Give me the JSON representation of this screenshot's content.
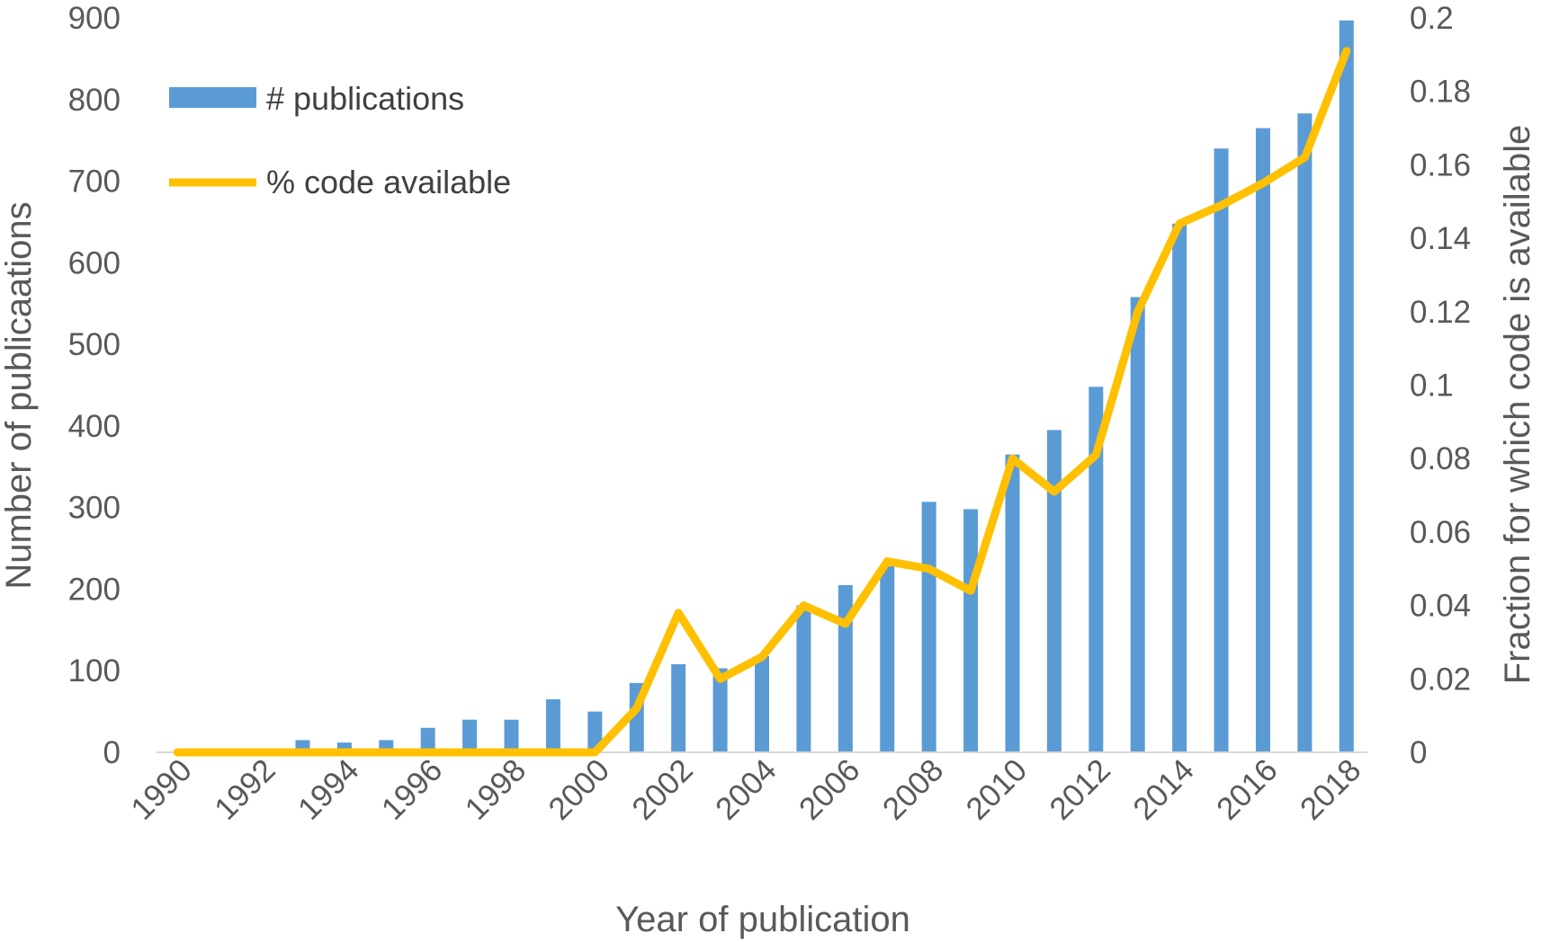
{
  "colors": {
    "bar": "#5b9bd5",
    "line": "#ffc000",
    "axis": "#d9d9d9",
    "text": "#595959"
  },
  "chart_data": {
    "type": "bar",
    "title": "",
    "xlabel": "Year of publication",
    "ylabel": "Number of publicaations",
    "y2label": "Fraction for which code is available",
    "categories": [
      1990,
      1991,
      1992,
      1993,
      1994,
      1995,
      1996,
      1997,
      1998,
      1999,
      2000,
      2001,
      2002,
      2003,
      2004,
      2005,
      2006,
      2007,
      2008,
      2009,
      2010,
      2011,
      2012,
      2013,
      2014,
      2015,
      2016,
      2017,
      2018
    ],
    "x_tick_labels": [
      "1990",
      "1992",
      "1994",
      "1996",
      "1998",
      "2000",
      "2002",
      "2004",
      "2006",
      "2008",
      "2010",
      "2012",
      "2014",
      "2016",
      "2018"
    ],
    "ylim": [
      0,
      900
    ],
    "y_ticks": [
      "0",
      "100",
      "200",
      "300",
      "400",
      "500",
      "600",
      "700",
      "800",
      "900"
    ],
    "y2lim": [
      0,
      0.2
    ],
    "y2_ticks": [
      "0",
      "0.02",
      "0.04",
      "0.06",
      "0.08",
      "0.1",
      "0.12",
      "0.14",
      "0.16",
      "0.18",
      "0.2"
    ],
    "legend_position": "top-left",
    "grid": false,
    "series": [
      {
        "name": "# publications",
        "type": "bar",
        "axis": "left",
        "values": [
          0,
          0,
          0,
          15,
          12,
          15,
          30,
          40,
          40,
          65,
          50,
          85,
          108,
          103,
          118,
          180,
          205,
          228,
          307,
          298,
          365,
          395,
          448,
          558,
          648,
          740,
          765,
          783,
          897
        ]
      },
      {
        "name": "% code available",
        "type": "line",
        "axis": "right",
        "values": [
          0,
          0,
          0,
          0,
          0,
          0,
          0,
          0,
          0,
          0,
          0,
          0.012,
          0.038,
          0.02,
          0.026,
          0.04,
          0.035,
          0.052,
          0.05,
          0.044,
          0.08,
          0.071,
          0.081,
          0.12,
          0.144,
          0.149,
          0.155,
          0.162,
          0.191
        ]
      }
    ]
  }
}
